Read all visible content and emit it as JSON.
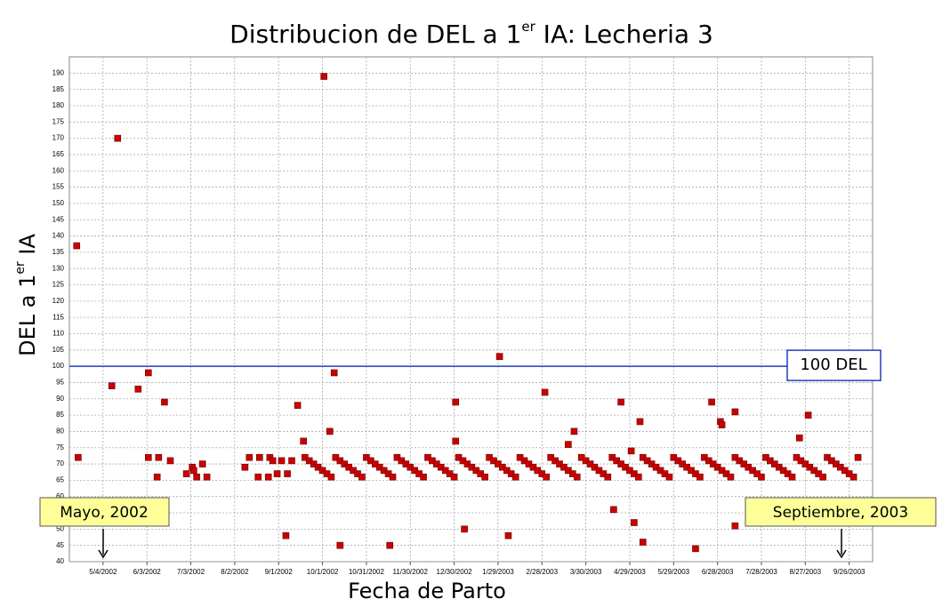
{
  "chart_data": {
    "type": "scatter",
    "title": {
      "text": "Distribucion de DEL a 1",
      "sup": "er",
      "rest": " IA: Lecheria 3"
    },
    "x_label": "Fecha de Parto",
    "y_label": {
      "text": "DEL a 1",
      "sup": "er",
      "rest": " IA"
    },
    "color": "#cc0000",
    "grid": true,
    "xlim": [
      "2002-04-11",
      "2003-10-12"
    ],
    "ylim": [
      40,
      195
    ],
    "xticks": [
      {
        "value": "2002-05-04",
        "label": "5/4/2002"
      },
      {
        "value": "2002-06-03",
        "label": "6/3/2002"
      },
      {
        "value": "2002-07-03",
        "label": "7/3/2002"
      },
      {
        "value": "2002-08-02",
        "label": "8/2/2002"
      },
      {
        "value": "2002-09-01",
        "label": "9/1/2002"
      },
      {
        "value": "2002-10-01",
        "label": "10/1/2002"
      },
      {
        "value": "2002-10-31",
        "label": "10/31/2002"
      },
      {
        "value": "2002-11-30",
        "label": "11/30/2002"
      },
      {
        "value": "2002-12-30",
        "label": "12/30/2002"
      },
      {
        "value": "2003-01-29",
        "label": "1/29/2003"
      },
      {
        "value": "2003-02-28",
        "label": "2/28/2003"
      },
      {
        "value": "2003-03-30",
        "label": "3/30/2003"
      },
      {
        "value": "2003-04-29",
        "label": "4/29/2003"
      },
      {
        "value": "2003-05-29",
        "label": "5/29/2003"
      },
      {
        "value": "2003-06-28",
        "label": "6/28/2003"
      },
      {
        "value": "2003-07-28",
        "label": "7/28/2003"
      },
      {
        "value": "2003-08-27",
        "label": "8/27/2003"
      },
      {
        "value": "2003-09-26",
        "label": "9/26/2003"
      }
    ],
    "yticks": [
      40,
      45,
      50,
      55,
      60,
      65,
      70,
      75,
      80,
      85,
      90,
      95,
      100,
      105,
      110,
      115,
      120,
      125,
      130,
      135,
      140,
      145,
      150,
      155,
      160,
      165,
      170,
      175,
      180,
      185,
      190
    ],
    "reference_line": {
      "value": 100,
      "label": "100 DEL",
      "color": "#1f3fbf"
    },
    "annotations": [
      "Mayo, 2002",
      "Septiembre, 2003"
    ],
    "x": [
      "2002-04-16",
      "2002-04-17",
      "2002-05-10",
      "2002-05-14",
      "2002-05-28",
      "2002-06-04",
      "2002-06-04",
      "2002-06-11",
      "2002-06-10",
      "2002-06-15",
      "2002-06-19",
      "2002-06-30",
      "2002-07-04",
      "2002-07-05",
      "2002-07-07",
      "2002-07-11",
      "2002-07-14",
      "2002-08-09",
      "2002-08-12",
      "2002-08-18",
      "2002-08-19",
      "2002-08-25",
      "2002-08-26",
      "2002-08-28",
      "2002-08-31",
      "2002-09-03",
      "2002-09-06",
      "2002-09-07",
      "2002-09-10",
      "2002-09-14",
      "2002-09-18",
      "2002-10-02",
      "2002-10-06",
      "2002-10-09",
      "2002-10-13",
      "2002-11-16",
      "2002-12-31",
      "2002-12-31",
      "2003-01-06",
      "2003-01-30",
      "2003-02-05",
      "2003-03-02",
      "2003-03-18",
      "2003-03-22",
      "2003-04-18",
      "2003-04-23",
      "2003-04-30",
      "2003-05-02",
      "2003-05-06",
      "2003-05-08",
      "2003-06-13",
      "2003-06-24",
      "2003-06-30",
      "2003-07-01",
      "2003-07-10",
      "2003-07-10",
      "2003-08-23",
      "2003-08-29",
      "2002-09-19",
      "2002-09-22",
      "2002-09-25",
      "2002-09-28",
      "2002-10-01",
      "2002-10-04",
      "2002-10-07",
      "2002-10-10",
      "2002-10-13",
      "2002-10-16",
      "2002-10-19",
      "2002-10-22",
      "2002-10-25",
      "2002-10-28",
      "2002-10-31",
      "2002-11-03",
      "2002-11-06",
      "2002-11-09",
      "2002-11-12",
      "2002-11-15",
      "2002-11-18",
      "2002-11-21",
      "2002-11-24",
      "2002-11-27",
      "2002-11-30",
      "2002-12-03",
      "2002-12-06",
      "2002-12-09",
      "2002-12-12",
      "2002-12-15",
      "2002-12-18",
      "2002-12-21",
      "2002-12-24",
      "2002-12-27",
      "2002-12-30",
      "2003-01-02",
      "2003-01-05",
      "2003-01-08",
      "2003-01-11",
      "2003-01-14",
      "2003-01-17",
      "2003-01-20",
      "2003-01-23",
      "2003-01-26",
      "2003-01-29",
      "2003-02-01",
      "2003-02-04",
      "2003-02-07",
      "2003-02-10",
      "2003-02-13",
      "2003-02-16",
      "2003-02-19",
      "2003-02-22",
      "2003-02-25",
      "2003-02-28",
      "2003-03-03",
      "2003-03-06",
      "2003-03-09",
      "2003-03-12",
      "2003-03-15",
      "2003-03-18",
      "2003-03-21",
      "2003-03-24",
      "2003-03-27",
      "2003-03-30",
      "2003-04-02",
      "2003-04-05",
      "2003-04-08",
      "2003-04-11",
      "2003-04-14",
      "2003-04-17",
      "2003-04-20",
      "2003-04-23",
      "2003-04-26",
      "2003-04-29",
      "2003-05-02",
      "2003-05-05",
      "2003-05-08",
      "2003-05-11",
      "2003-05-14",
      "2003-05-17",
      "2003-05-20",
      "2003-05-23",
      "2003-05-26",
      "2003-05-29",
      "2003-06-01",
      "2003-06-04",
      "2003-06-07",
      "2003-06-10",
      "2003-06-13",
      "2003-06-16",
      "2003-06-19",
      "2003-06-22",
      "2003-06-25",
      "2003-06-28",
      "2003-07-01",
      "2003-07-04",
      "2003-07-07",
      "2003-07-10",
      "2003-07-13",
      "2003-07-16",
      "2003-07-19",
      "2003-07-22",
      "2003-07-25",
      "2003-07-28",
      "2003-07-31",
      "2003-08-03",
      "2003-08-06",
      "2003-08-09",
      "2003-08-12",
      "2003-08-15",
      "2003-08-18",
      "2003-08-21",
      "2003-08-24",
      "2003-08-27",
      "2003-08-30",
      "2003-09-02",
      "2003-09-05",
      "2003-09-08",
      "2003-09-11",
      "2003-09-14",
      "2003-09-17",
      "2003-09-20",
      "2003-09-23",
      "2003-09-26",
      "2003-09-29",
      "2003-10-02"
    ],
    "values": [
      137,
      72,
      94,
      170,
      93,
      98,
      72,
      72,
      66,
      89,
      71,
      67,
      69,
      68,
      66,
      70,
      66,
      69,
      72,
      66,
      72,
      66,
      72,
      71,
      67,
      71,
      48,
      67,
      71,
      88,
      77,
      189,
      80,
      98,
      45,
      45,
      89,
      77,
      50,
      103,
      48,
      92,
      76,
      80,
      56,
      89,
      74,
      52,
      83,
      46,
      44,
      89,
      83,
      82,
      86,
      51,
      78,
      85,
      72,
      71,
      70,
      69,
      68,
      67,
      66,
      72,
      71,
      70,
      69,
      68,
      67,
      66,
      72,
      71,
      70,
      69,
      68,
      67,
      66,
      72,
      71,
      70,
      69,
      68,
      67,
      66,
      72,
      71,
      70,
      69,
      68,
      67,
      66,
      72,
      71,
      70,
      69,
      68,
      67,
      66,
      72,
      71,
      70,
      69,
      68,
      67,
      66,
      72,
      71,
      70,
      69,
      68,
      67,
      66,
      72,
      71,
      70,
      69,
      68,
      67,
      66,
      72,
      71,
      70,
      69,
      68,
      67,
      66,
      72,
      71,
      70,
      69,
      68,
      67,
      66,
      72,
      71,
      70,
      69,
      68,
      67,
      66,
      72,
      71,
      70,
      69,
      68,
      67,
      66,
      72,
      71,
      70,
      69,
      68,
      67,
      66,
      72,
      71,
      70,
      69,
      68,
      67,
      66,
      72,
      71,
      70,
      69,
      68,
      67,
      66,
      72,
      71,
      70,
      69,
      68,
      67,
      66,
      72,
      71,
      70,
      69,
      68,
      67,
      66,
      72
    ]
  }
}
